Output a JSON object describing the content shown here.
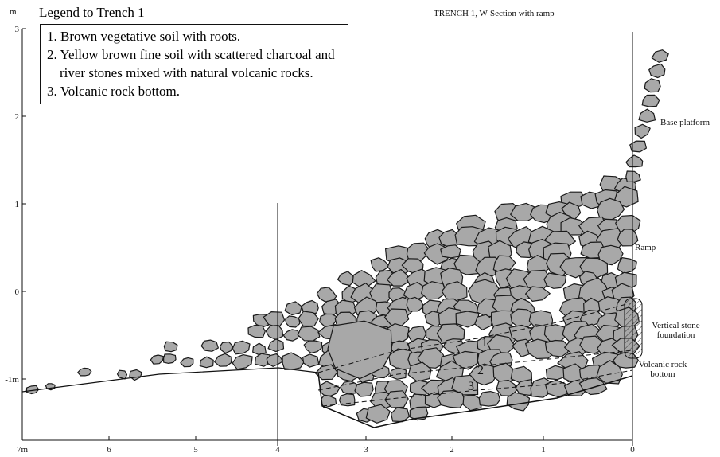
{
  "title": "TRENCH 1, W-Section with ramp",
  "legend": {
    "title": "Legend to Trench 1",
    "items": [
      "1. Brown vegetative soil with roots.",
      "2. Yellow brown fine soil with scattered charcoal and river stones mixed with natural volcanic rocks.",
      "3. Volcanic rock bottom."
    ]
  },
  "y_axis": {
    "unit": "m",
    "ticks": [
      "3",
      "2",
      "1",
      "0",
      "-1m"
    ]
  },
  "x_axis": {
    "ticks": [
      "7m",
      "6",
      "5",
      "4",
      "3",
      "2",
      "1",
      "0"
    ]
  },
  "labels": {
    "base_platform": "Base platform",
    "ramp": "Ramp",
    "foundation": "Vertical stone foundation",
    "bottom": "Volcanic rock bottom"
  },
  "layers": [
    "1",
    "2",
    "3"
  ]
}
